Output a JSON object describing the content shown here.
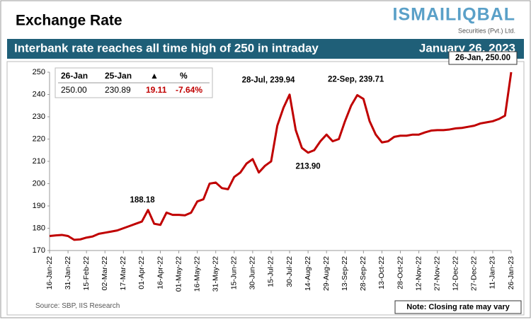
{
  "header": {
    "title": "Exchange Rate",
    "logo": "ISMAILIQBAL",
    "logo_sub": "Securities (Pvt.) Ltd.",
    "banner": "Interbank rate reaches all time high of 250 in intraday",
    "date": "January 26, 2023"
  },
  "summary_table": {
    "headers": [
      "26-Jan",
      "25-Jan",
      "▲",
      "%"
    ],
    "values": [
      "250.00",
      "230.89",
      "19.11",
      "-7.64%"
    ]
  },
  "chart_data": {
    "type": "line",
    "categories": [
      "16-Jan-22",
      null,
      null,
      "31-Jan-22",
      null,
      null,
      "15-Feb-22",
      null,
      null,
      "02-Mar-22",
      null,
      null,
      "17-Mar-22",
      null,
      null,
      "01-Apr-22",
      null,
      null,
      "16-Apr-22",
      null,
      null,
      "01-May-22",
      null,
      null,
      "16-May-22",
      null,
      null,
      "31-May-22",
      null,
      null,
      "15-Jun-22",
      null,
      null,
      "30-Jun-22",
      null,
      null,
      "15-Jul-22",
      null,
      null,
      "30-Jul-22",
      null,
      null,
      "14-Aug-22",
      null,
      null,
      "29-Aug-22",
      null,
      null,
      "13-Sep-22",
      null,
      null,
      "28-Sep-22",
      null,
      null,
      "13-Oct-22",
      null,
      null,
      "28-Oct-22",
      null,
      null,
      "12-Nov-22",
      null,
      null,
      "27-Nov-22",
      null,
      null,
      "12-Dec-22",
      null,
      null,
      "27-Dec-22",
      null,
      null,
      "11-Jan-23",
      null,
      null,
      "26-Jan-23"
    ],
    "series": [
      {
        "name": "Interbank rate",
        "color": "#c00000",
        "values": [
          176.5,
          176.8,
          177,
          176.5,
          174.8,
          175,
          175.8,
          176.3,
          177.5,
          178,
          178.5,
          179,
          180,
          181,
          182,
          183,
          188.18,
          182,
          181.5,
          187,
          186,
          186,
          185.8,
          187,
          192,
          193,
          200,
          200.5,
          198,
          197.5,
          203,
          205,
          209,
          211,
          205,
          208,
          210,
          226,
          234,
          239.94,
          224,
          216,
          213.9,
          215,
          219,
          222,
          219,
          220,
          228,
          235,
          239.71,
          238,
          228,
          222,
          218.5,
          219,
          221,
          221.5,
          221.5,
          222,
          222,
          223,
          223.8,
          224,
          224,
          224.3,
          224.8,
          225,
          225.5,
          226,
          227,
          227.5,
          228,
          229,
          230.5,
          250
        ]
      }
    ],
    "ylim": [
      170,
      250
    ],
    "yticks": [
      170,
      180,
      190,
      200,
      210,
      220,
      230,
      240,
      250
    ],
    "grid": true,
    "annotations": [
      "28-Jul, 239.94",
      "22-Sep, 239.71",
      "213.90",
      "188.18",
      "26-Jan, 250.00"
    ],
    "source": "Source: SBP, IIS Research",
    "note": "Note: Closing rate may vary"
  }
}
